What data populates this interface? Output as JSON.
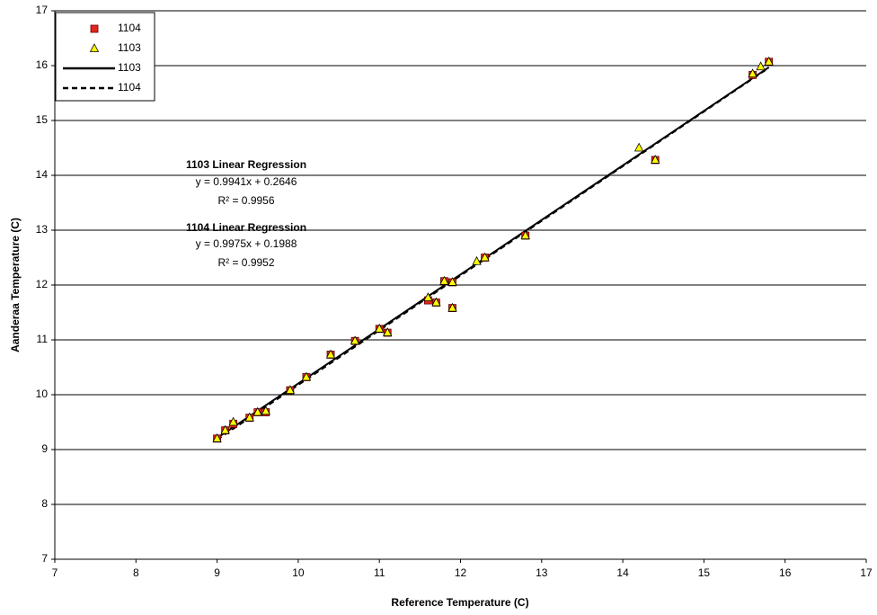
{
  "chart_data": {
    "type": "scatter",
    "xlabel": "Reference Temperature (C)",
    "ylabel": "Aanderaa Temperature (C)",
    "xlim": [
      7,
      17
    ],
    "xticks": [
      7,
      8,
      9,
      10,
      11,
      12,
      13,
      14,
      15,
      16,
      17
    ],
    "ylim": [
      7,
      17
    ],
    "yticks": [
      7,
      8,
      9,
      10,
      11,
      12,
      13,
      14,
      15,
      16,
      17
    ],
    "grid": true,
    "legend": "upper left",
    "series": [
      {
        "name": "1104",
        "kind": "marker",
        "marker": "square",
        "color": "#e3261f",
        "x": [
          9.0,
          9.1,
          9.2,
          9.4,
          9.5,
          9.6,
          9.9,
          10.1,
          10.4,
          10.7,
          11.0,
          11.1,
          11.6,
          11.7,
          11.8,
          11.9,
          11.9,
          12.3,
          12.8,
          14.4,
          15.6,
          15.8
        ],
        "values": [
          9.2,
          9.35,
          9.47,
          9.58,
          9.68,
          9.68,
          10.08,
          10.32,
          10.73,
          10.98,
          11.2,
          11.13,
          11.72,
          11.68,
          12.07,
          12.05,
          11.58,
          12.5,
          12.9,
          14.28,
          15.83,
          16.07
        ]
      },
      {
        "name": "1103",
        "kind": "marker",
        "marker": "triangle",
        "color": "#ffff00",
        "x": [
          9.0,
          9.1,
          9.2,
          9.4,
          9.5,
          9.6,
          9.9,
          10.1,
          10.4,
          10.7,
          11.0,
          11.1,
          11.6,
          11.7,
          11.8,
          11.9,
          11.9,
          12.2,
          12.3,
          12.8,
          14.2,
          14.4,
          15.6,
          15.7,
          15.8
        ],
        "values": [
          9.2,
          9.35,
          9.5,
          9.58,
          9.68,
          9.7,
          10.08,
          10.32,
          10.73,
          10.98,
          11.2,
          11.13,
          11.77,
          11.68,
          12.07,
          12.05,
          11.58,
          12.43,
          12.5,
          12.9,
          14.5,
          14.28,
          15.85,
          15.98,
          16.07
        ]
      },
      {
        "name": "1103",
        "kind": "line",
        "dash": false,
        "color": "#000000",
        "x": [
          9.0,
          15.8
        ],
        "values": [
          9.21,
          15.97
        ]
      },
      {
        "name": "1104",
        "kind": "line",
        "dash": true,
        "color": "#000000",
        "x": [
          9.0,
          15.8
        ],
        "values": [
          9.18,
          15.96
        ]
      }
    ],
    "annotations": [
      {
        "text": "1103 Linear Regression",
        "bold": true
      },
      {
        "text": "y = 0.9941x + 0.2646",
        "bold": false
      },
      {
        "text": "R² = 0.9956",
        "bold": false
      },
      {
        "text": "1104 Linear Regression",
        "bold": true
      },
      {
        "text": "y = 0.9975x + 0.1988",
        "bold": false
      },
      {
        "text": "R² = 0.9952",
        "bold": false
      }
    ]
  }
}
